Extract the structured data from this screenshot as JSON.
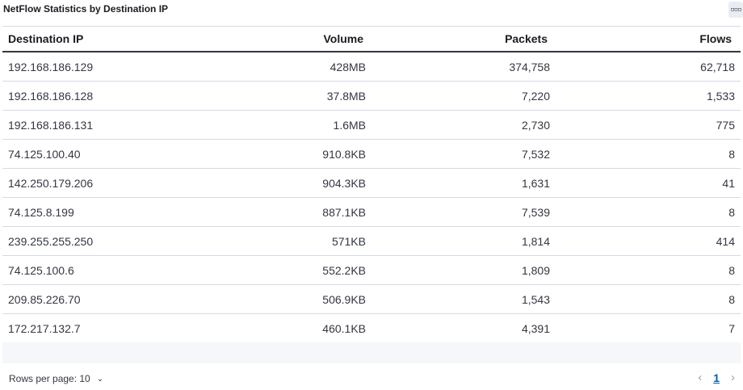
{
  "panel": {
    "title": "NetFlow Statistics by Destination IP",
    "menu_icon": "ellipsis-icon"
  },
  "table": {
    "columns": [
      "Destination IP",
      "Volume",
      "Packets",
      "Flows"
    ],
    "rows": [
      [
        "192.168.186.129",
        "428MB",
        "374,758",
        "62,718"
      ],
      [
        "192.168.186.128",
        "37.8MB",
        "7,220",
        "1,533"
      ],
      [
        "192.168.186.131",
        "1.6MB",
        "2,730",
        "775"
      ],
      [
        "74.125.100.40",
        "910.8KB",
        "7,532",
        "8"
      ],
      [
        "142.250.179.206",
        "904.3KB",
        "1,631",
        "41"
      ],
      [
        "74.125.8.199",
        "887.1KB",
        "7,539",
        "8"
      ],
      [
        "239.255.255.250",
        "571KB",
        "1,814",
        "414"
      ],
      [
        "74.125.100.6",
        "552.2KB",
        "1,809",
        "8"
      ],
      [
        "209.85.226.70",
        "506.9KB",
        "1,543",
        "8"
      ],
      [
        "172.217.132.7",
        "460.1KB",
        "4,391",
        "7"
      ]
    ]
  },
  "footer": {
    "rows_per_page_label": "Rows per page: 10",
    "prev_icon": "chevron-left-icon",
    "next_icon": "chevron-right-icon",
    "current_page": "1"
  }
}
